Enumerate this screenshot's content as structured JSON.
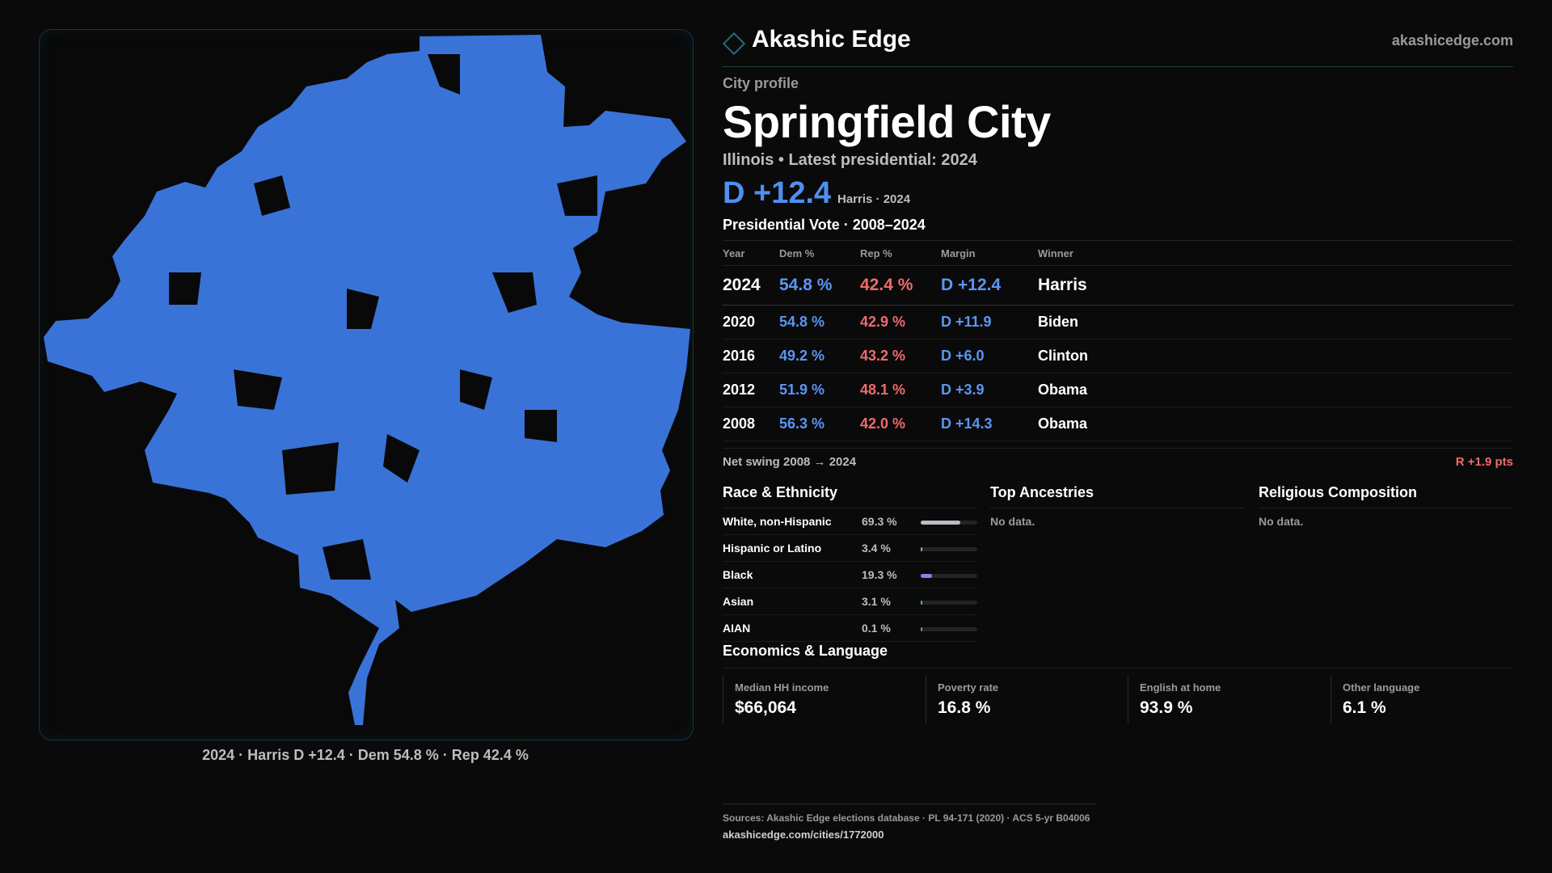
{
  "brand": {
    "name": "Akashic Edge",
    "url": "akashicedge.com",
    "accent": "#1c6f7a"
  },
  "profile": {
    "kicker": "City profile",
    "title": "Springfield City",
    "subtitle": "Illinois • Latest presidential: 2024",
    "margin_big": "D +12.4",
    "margin_sub": "Harris · 2024"
  },
  "map": {
    "caption": "2024 · Harris D +12.4 · Dem 54.8 % · Rep 42.4 %",
    "fill": "#3a73d8"
  },
  "votes": {
    "title": "Presidential Vote · 2008–2024",
    "headers": [
      "Year",
      "Dem %",
      "Rep %",
      "Margin",
      "Winner"
    ],
    "rows": [
      {
        "year": "2024",
        "dem": "54.8 %",
        "rep": "42.4 %",
        "margin": "D +12.4",
        "winner": "Harris"
      },
      {
        "year": "2020",
        "dem": "54.8 %",
        "rep": "42.9 %",
        "margin": "D +11.9",
        "winner": "Biden"
      },
      {
        "year": "2016",
        "dem": "49.2 %",
        "rep": "43.2 %",
        "margin": "D +6.0",
        "winner": "Clinton"
      },
      {
        "year": "2012",
        "dem": "51.9 %",
        "rep": "48.1 %",
        "margin": "D +3.9",
        "winner": "Obama"
      },
      {
        "year": "2008",
        "dem": "56.3 %",
        "rep": "42.0 %",
        "margin": "D +14.3",
        "winner": "Obama"
      }
    ],
    "swing_label": "Net swing 2008 → 2024",
    "swing_value": "R +1.9 pts"
  },
  "race": {
    "title": "Race & Ethnicity",
    "rows": [
      {
        "label": "White, non-Hispanic",
        "pct": "69.3 %",
        "value": 69.3,
        "color": "#b8bcc4"
      },
      {
        "label": "Hispanic or Latino",
        "pct": "3.4 %",
        "value": 3.4,
        "color": "#e8983a"
      },
      {
        "label": "Black",
        "pct": "19.3 %",
        "value": 19.3,
        "color": "#9a7ae6"
      },
      {
        "label": "Asian",
        "pct": "3.1 %",
        "value": 3.1,
        "color": "#3ac0a0"
      },
      {
        "label": "AIAN",
        "pct": "0.1 %",
        "value": 0.1,
        "color": "#d06a6a"
      }
    ]
  },
  "ancestries": {
    "title": "Top Ancestries",
    "empty": "No data."
  },
  "religion": {
    "title": "Religious Composition",
    "empty": "No data."
  },
  "economics": {
    "title": "Economics & Language",
    "items": [
      {
        "label": "Median HH income",
        "value": "$66,064"
      },
      {
        "label": "Poverty rate",
        "value": "16.8 %"
      },
      {
        "label": "English at home",
        "value": "93.9 %"
      },
      {
        "label": "Other language",
        "value": "6.1 %"
      }
    ]
  },
  "footer": {
    "sources": "Sources: Akashic Edge elections database · PL 94-171 (2020) · ACS 5-yr B04006",
    "url": "akashicedge.com/cities/1772000"
  }
}
